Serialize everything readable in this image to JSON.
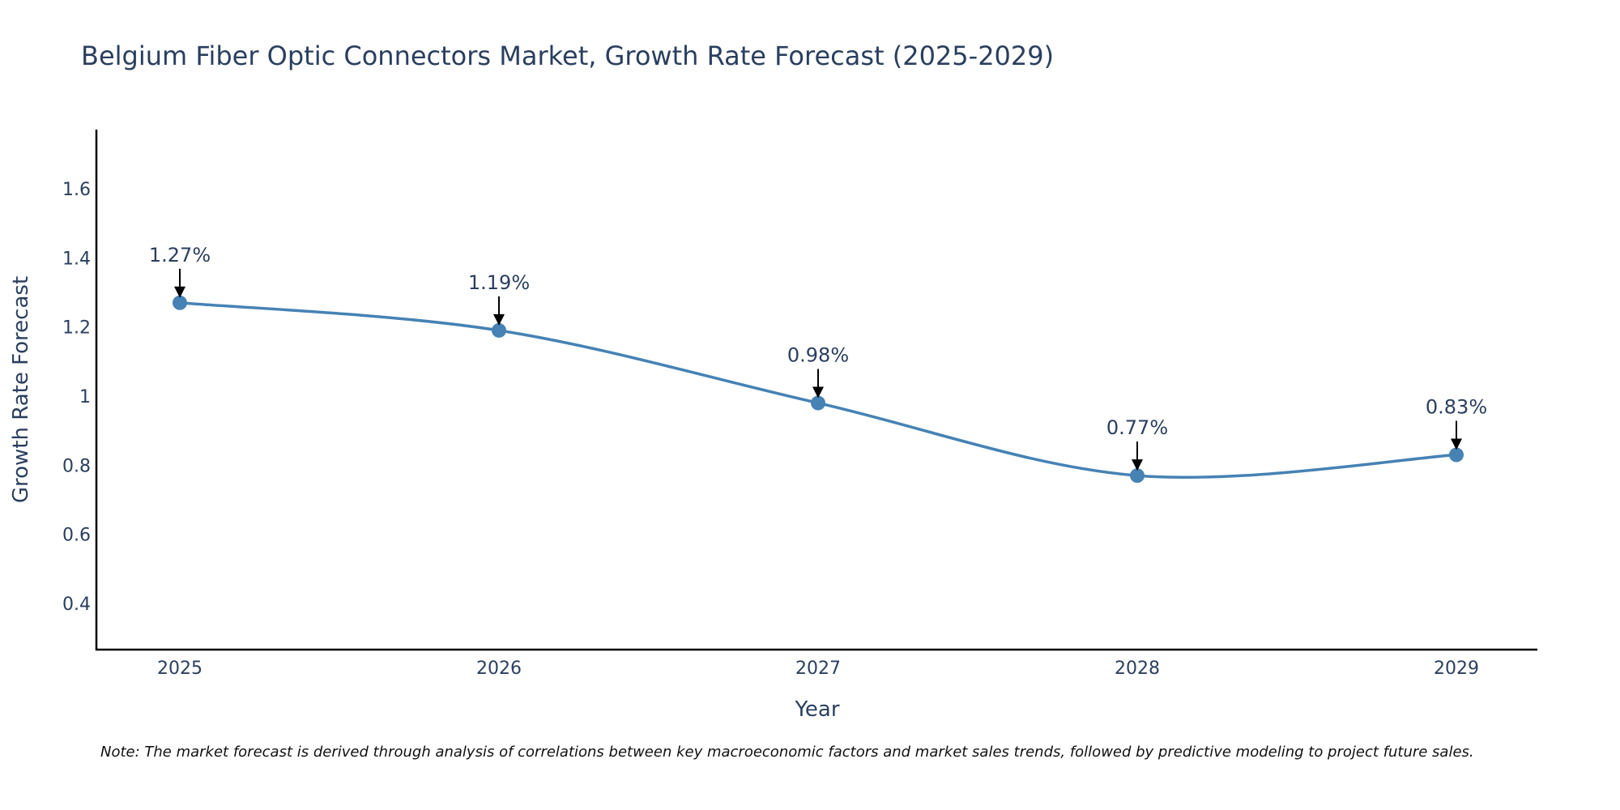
{
  "chart_data": {
    "type": "line",
    "title": "Belgium Fiber Optic Connectors Market, Growth Rate Forecast (2025-2029)",
    "xlabel": "Year",
    "ylabel": "Growth Rate Forecast",
    "categories": [
      "2025",
      "2026",
      "2027",
      "2028",
      "2029"
    ],
    "values": [
      1.27,
      1.19,
      0.98,
      0.77,
      0.83
    ],
    "annotations": [
      "1.27%",
      "1.19%",
      "0.98%",
      "0.77%",
      "0.83%"
    ],
    "yticks": [
      0.4,
      0.6,
      0.8,
      1,
      1.2,
      1.4,
      1.6
    ],
    "ytick_labels": [
      "0.4",
      "0.6",
      "0.8",
      "1",
      "1.2",
      "1.4",
      "1.6"
    ],
    "ylim": [
      0.27,
      1.77
    ],
    "line_color": "#4682b4",
    "marker_color": "#4682b4",
    "grid": false
  },
  "note": "Note: The market forecast is derived through analysis of correlations between key macroeconomic factors and market sales trends, followed by predictive modeling to project future sales."
}
